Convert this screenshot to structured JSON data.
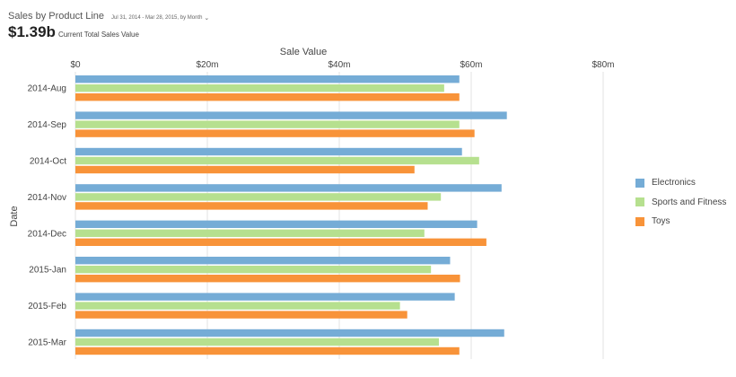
{
  "header": {
    "title": "Sales by Product Line",
    "range": "Jul 31, 2014 - Mar 28, 2015, by Month",
    "total_value": "$1.39b",
    "total_label": "Current Total Sales Value"
  },
  "colors": {
    "grid": "#e3e3e3",
    "text": "#444444"
  },
  "chart_data": {
    "type": "bar",
    "orientation": "horizontal",
    "xlabel": "Sale Value",
    "ylabel": "Date",
    "xlim": [
      0,
      80
    ],
    "x_ticks": [
      0,
      20,
      40,
      60,
      80
    ],
    "x_tick_labels": [
      "$0",
      "$20m",
      "$40m",
      "$60m",
      "$80m"
    ],
    "categories": [
      "2014-Aug",
      "2014-Sep",
      "2014-Oct",
      "2014-Nov",
      "2014-Dec",
      "2015-Jan",
      "2015-Feb",
      "2015-Mar"
    ],
    "series": [
      {
        "name": "Electronics",
        "color": "#75acd6",
        "values": [
          58.2,
          65.4,
          58.6,
          64.6,
          60.9,
          56.8,
          57.5,
          65.0
        ]
      },
      {
        "name": "Sports and Fitness",
        "color": "#b6e08f",
        "values": [
          55.9,
          58.2,
          61.2,
          55.4,
          52.9,
          53.9,
          49.2,
          55.1
        ]
      },
      {
        "name": "Toys",
        "color": "#f89339",
        "values": [
          58.2,
          60.5,
          51.4,
          53.4,
          62.3,
          58.3,
          50.3,
          58.2
        ]
      }
    ],
    "legend_position": "right",
    "grid": true
  }
}
